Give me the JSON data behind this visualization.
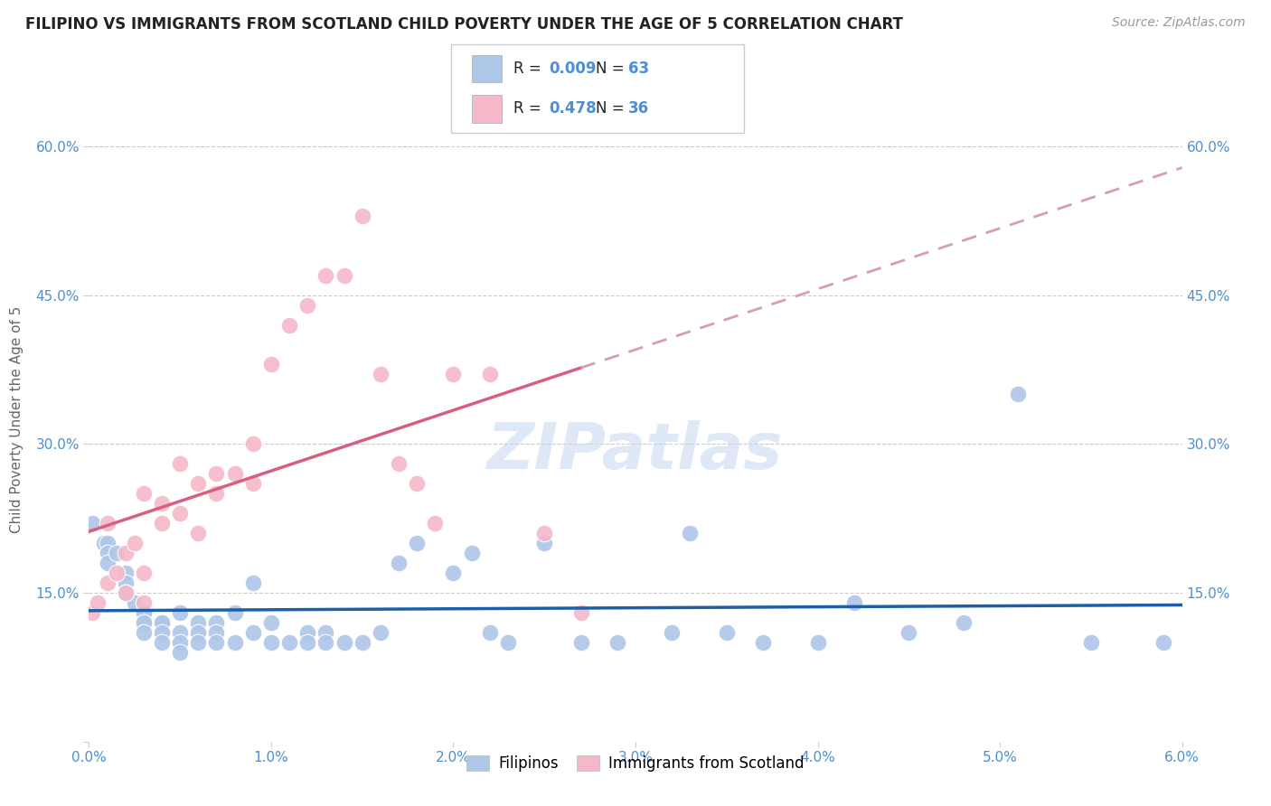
{
  "title": "FILIPINO VS IMMIGRANTS FROM SCOTLAND CHILD POVERTY UNDER THE AGE OF 5 CORRELATION CHART",
  "source": "Source: ZipAtlas.com",
  "ylabel": "Child Poverty Under the Age of 5",
  "xlim": [
    0.0,
    0.06
  ],
  "ylim": [
    0.0,
    0.65
  ],
  "watermark": "ZIPatlas",
  "filipino_color": "#aec6e8",
  "scotland_color": "#f4b8c8",
  "filipino_line_color": "#1a5fa8",
  "scotland_line_color": "#d95f7f",
  "scotland_dash_color": "#d4a0b0",
  "R_filipino": 0.009,
  "N_filipino": 63,
  "R_scotland": 0.478,
  "N_scotland": 36,
  "title_color": "#222222",
  "axis_color": "#4d8fd1",
  "filipino_x": [
    0.0002,
    0.0008,
    0.001,
    0.001,
    0.001,
    0.0015,
    0.002,
    0.002,
    0.002,
    0.0025,
    0.003,
    0.003,
    0.003,
    0.003,
    0.003,
    0.004,
    0.004,
    0.004,
    0.004,
    0.005,
    0.005,
    0.005,
    0.005,
    0.006,
    0.006,
    0.006,
    0.007,
    0.007,
    0.007,
    0.008,
    0.008,
    0.009,
    0.009,
    0.01,
    0.01,
    0.011,
    0.012,
    0.012,
    0.013,
    0.013,
    0.014,
    0.015,
    0.016,
    0.017,
    0.018,
    0.02,
    0.021,
    0.022,
    0.023,
    0.025,
    0.027,
    0.029,
    0.032,
    0.033,
    0.035,
    0.037,
    0.04,
    0.042,
    0.045,
    0.048,
    0.051,
    0.055,
    0.059
  ],
  "filipino_y": [
    0.22,
    0.2,
    0.2,
    0.19,
    0.18,
    0.19,
    0.17,
    0.16,
    0.15,
    0.14,
    0.13,
    0.13,
    0.12,
    0.12,
    0.11,
    0.12,
    0.12,
    0.11,
    0.1,
    0.13,
    0.11,
    0.1,
    0.09,
    0.12,
    0.11,
    0.1,
    0.12,
    0.11,
    0.1,
    0.13,
    0.1,
    0.16,
    0.11,
    0.12,
    0.1,
    0.1,
    0.11,
    0.1,
    0.11,
    0.1,
    0.1,
    0.1,
    0.11,
    0.18,
    0.2,
    0.17,
    0.19,
    0.11,
    0.1,
    0.2,
    0.1,
    0.1,
    0.11,
    0.21,
    0.11,
    0.1,
    0.1,
    0.14,
    0.11,
    0.12,
    0.35,
    0.1,
    0.1
  ],
  "scotland_x": [
    0.0002,
    0.0005,
    0.001,
    0.001,
    0.0015,
    0.002,
    0.002,
    0.0025,
    0.003,
    0.003,
    0.003,
    0.004,
    0.004,
    0.005,
    0.005,
    0.006,
    0.006,
    0.007,
    0.007,
    0.008,
    0.009,
    0.009,
    0.01,
    0.011,
    0.012,
    0.013,
    0.014,
    0.015,
    0.016,
    0.017,
    0.018,
    0.019,
    0.02,
    0.022,
    0.025,
    0.027
  ],
  "scotland_y": [
    0.13,
    0.14,
    0.16,
    0.22,
    0.17,
    0.15,
    0.19,
    0.2,
    0.14,
    0.17,
    0.25,
    0.22,
    0.24,
    0.23,
    0.28,
    0.21,
    0.26,
    0.25,
    0.27,
    0.27,
    0.26,
    0.3,
    0.38,
    0.42,
    0.44,
    0.47,
    0.47,
    0.53,
    0.37,
    0.28,
    0.26,
    0.22,
    0.37,
    0.37,
    0.21,
    0.13
  ]
}
